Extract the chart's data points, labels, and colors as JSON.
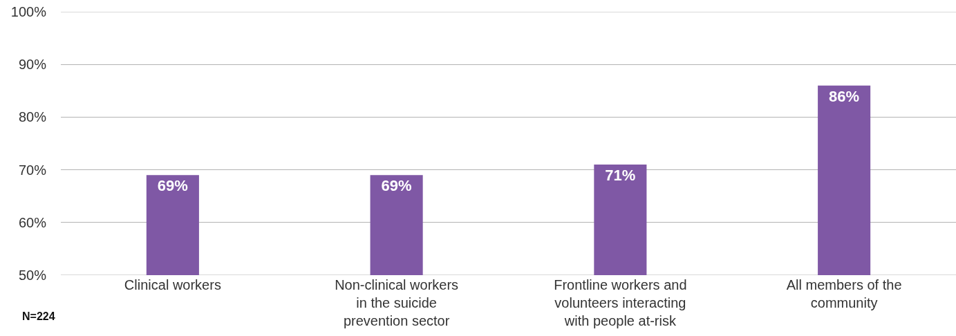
{
  "chart_data": {
    "type": "bar",
    "categories": [
      "Clinical workers",
      "Non-clinical workers in the suicide prevention sector",
      "Frontline workers and volunteers interacting with people at-risk",
      "All members of the community"
    ],
    "values": [
      69,
      69,
      71,
      86
    ],
    "color": "#7f58a5",
    "ylim": [
      50,
      100
    ],
    "yticks": [
      {
        "value": 50,
        "label": "50%"
      },
      {
        "value": 60,
        "label": "60%"
      },
      {
        "value": 70,
        "label": "70%"
      },
      {
        "value": 80,
        "label": "80%"
      },
      {
        "value": 90,
        "label": "90%"
      },
      {
        "value": 100,
        "label": "100%"
      }
    ],
    "grid": "y",
    "value_labels": [
      "69%",
      "69%",
      "71%",
      "86%"
    ],
    "annotations": [
      "N=224"
    ]
  }
}
